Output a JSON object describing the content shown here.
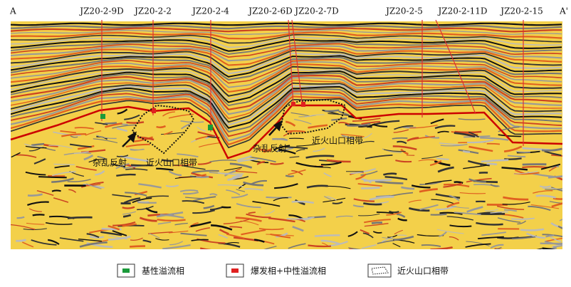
{
  "section": {
    "left_end": "A",
    "right_end": "A'",
    "wells": [
      "JZ20-2-9D",
      "JZ20-2-2",
      "JZ20-2-4",
      "JZ20-2-6D",
      "JZ20-2-7D",
      "JZ20-2-5",
      "JZ20-2-11D",
      "JZ20-2-15"
    ],
    "annotations": [
      "杂乱反射",
      "近火山口相带",
      "杂乱反射",
      "近火山口相带"
    ]
  },
  "legend": [
    "基性溢流相",
    "爆发相+中性溢流相",
    "近火山口相带"
  ]
}
